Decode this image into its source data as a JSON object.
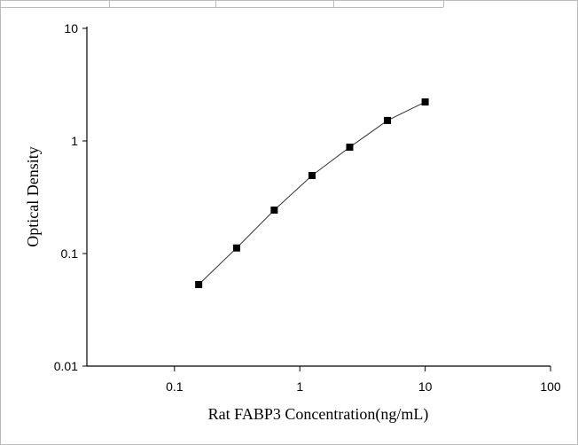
{
  "chart_data": {
    "type": "scatter",
    "x_label": "Rat FABP3 Concentration(ng/mL)",
    "y_label": "Optical Density",
    "x": [
      0.156,
      0.313,
      0.625,
      1.25,
      2.5,
      5,
      10
    ],
    "values": [
      0.053,
      0.112,
      0.243,
      0.493,
      0.88,
      1.52,
      2.22
    ],
    "color": "#000000",
    "line": true,
    "xlog": true,
    "ylog": true,
    "xlim": [
      0.02,
      100
    ],
    "ylim": [
      0.01,
      10
    ],
    "xticks": [
      0.1,
      1,
      10,
      100
    ],
    "yticks": [
      0.01,
      0.1,
      1,
      10
    ]
  }
}
